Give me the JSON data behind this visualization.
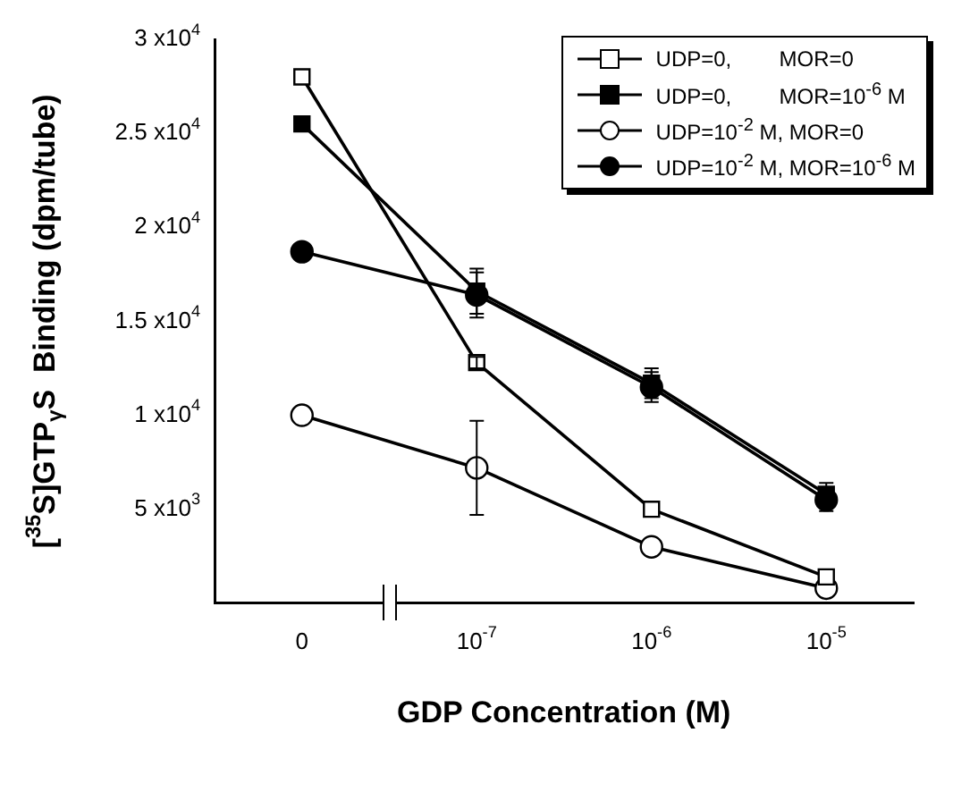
{
  "chart_data": {
    "type": "line",
    "xlabel": "GDP Concentration (M)",
    "ylabel": "[$^{35}$S]GTP$_{γ}$S  Binding (dpm/tube)",
    "categories": [
      "0",
      "10$^{-7}$",
      "10$^{-6}$",
      "10$^{-5}$"
    ],
    "ylim": [
      0,
      30000
    ],
    "yticks": [
      {
        "value": 5000,
        "label": "5 x10$^{3}$"
      },
      {
        "value": 10000,
        "label": "1 x10$^{4}$"
      },
      {
        "value": 15000,
        "label": "1.5 x10$^{4}$"
      },
      {
        "value": 20000,
        "label": "2 x10$^{4}$"
      },
      {
        "value": 25000,
        "label": "2.5 x10$^{4}$"
      },
      {
        "value": 30000,
        "label": "3 x10$^{4}$"
      }
    ],
    "grid": false,
    "legend": "top right",
    "line_style": "solid",
    "series": [
      {
        "name": "UDP=0,        MOR=0",
        "color": "#ffffff",
        "marker": "square",
        "values": [
          28000,
          12800,
          5000,
          1400
        ],
        "errors": [
          null,
          300,
          null,
          null
        ]
      },
      {
        "name": "UDP=0,        MOR=10$^{-6}$ M",
        "color": "#000000",
        "marker": "square",
        "values": [
          25500,
          16600,
          11700,
          5800
        ],
        "errors": [
          null,
          1200,
          800,
          600
        ]
      },
      {
        "name": "UDP=10$^{-2}$ M, MOR=0",
        "color": "#ffffff",
        "marker": "circle",
        "values": [
          10000,
          7200,
          3000,
          800
        ],
        "errors": [
          null,
          2500,
          null,
          null
        ]
      },
      {
        "name": "UDP=10$^{-2}$ M, MOR=10$^{-6}$ M",
        "color": "#000000",
        "marker": "circle",
        "values": [
          18700,
          16400,
          11500,
          5500
        ],
        "errors": [
          null,
          1200,
          800,
          600
        ]
      }
    ]
  }
}
